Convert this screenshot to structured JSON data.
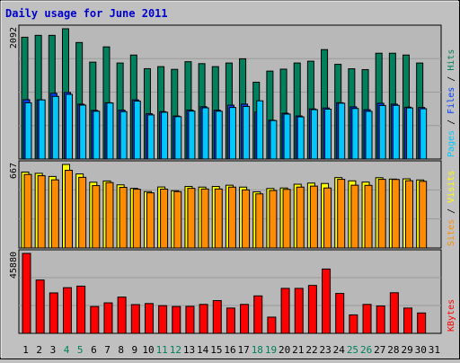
{
  "title": "Daily usage for June 2011",
  "colors": {
    "background": "#c0c0c0",
    "plot_bg": "#b8b8b8",
    "title": "#0000cc",
    "hits": "#00805c",
    "files": "#0040ff",
    "pages": "#00c8ff",
    "visits": "#ffff00",
    "sites": "#ff8c00",
    "kbytes": "#ff0000",
    "weekend_label": "#00805c"
  },
  "chart_data": [
    {
      "type": "bar",
      "panel": "hits-files-pages",
      "legend": [
        "Hits",
        "Files",
        "Pages"
      ],
      "y_max_label": "2092",
      "ylim": [
        0,
        2092
      ],
      "grid": true,
      "categories": [
        "1",
        "2",
        "3",
        "4",
        "5",
        "6",
        "7",
        "8",
        "9",
        "10",
        "11",
        "12",
        "13",
        "14",
        "15",
        "16",
        "17",
        "18",
        "19",
        "20",
        "21",
        "22",
        "23",
        "24",
        "25",
        "26",
        "27",
        "28",
        "29",
        "30",
        "31"
      ],
      "series": [
        {
          "name": "Hits",
          "values": [
            1956,
            1986,
            1986,
            2092,
            1871,
            1556,
            1801,
            1542,
            1670,
            1451,
            1484,
            1440,
            1563,
            1532,
            1484,
            1542,
            1610,
            1234,
            1412,
            1443,
            1542,
            1571,
            1757,
            1521,
            1449,
            1436,
            1699,
            1699,
            1670,
            1542,
            null
          ]
        },
        {
          "name": "Files",
          "values": [
            953,
            950,
            1056,
            1069,
            881,
            781,
            904,
            785,
            950,
            728,
            761,
            691,
            787,
            840,
            785,
            865,
            882,
            756,
            623,
            735,
            692,
            805,
            821,
            904,
            838,
            792,
            895,
            881,
            833,
            828,
            null
          ]
        },
        {
          "name": "Pages",
          "values": [
            903,
            950,
            1006,
            1039,
            866,
            767,
            900,
            761,
            931,
            708,
            751,
            681,
            770,
            822,
            768,
            828,
            845,
            935,
            618,
            722,
            677,
            793,
            801,
            896,
            812,
            766,
            860,
            862,
            821,
            808,
            null
          ]
        }
      ]
    },
    {
      "type": "bar",
      "panel": "visits-sites",
      "legend": [
        "Visits",
        "Sites"
      ],
      "y_max_label": "667",
      "ylim": [
        0,
        667
      ],
      "grid": true,
      "categories": [
        "1",
        "2",
        "3",
        "4",
        "5",
        "6",
        "7",
        "8",
        "9",
        "10",
        "11",
        "12",
        "13",
        "14",
        "15",
        "16",
        "17",
        "18",
        "19",
        "20",
        "21",
        "22",
        "23",
        "24",
        "25",
        "26",
        "27",
        "28",
        "29",
        "30",
        "31"
      ],
      "series": [
        {
          "name": "Visits",
          "values": [
            606,
            596,
            571,
            667,
            591,
            525,
            535,
            504,
            476,
            450,
            487,
            457,
            491,
            486,
            491,
            501,
            486,
            448,
            475,
            479,
            509,
            518,
            515,
            562,
            536,
            526,
            561,
            550,
            552,
            543,
            null
          ]
        },
        {
          "name": "Sites",
          "values": [
            587,
            577,
            544,
            620,
            564,
            498,
            522,
            484,
            469,
            440,
            470,
            450,
            476,
            471,
            471,
            486,
            464,
            432,
            459,
            468,
            486,
            494,
            479,
            548,
            501,
            500,
            548,
            547,
            537,
            532,
            null
          ]
        }
      ]
    },
    {
      "type": "bar",
      "panel": "kbytes",
      "legend": [
        "KBytes"
      ],
      "y_max_label": "45880",
      "ylim": [
        0,
        45880
      ],
      "grid": true,
      "categories": [
        "1",
        "2",
        "3",
        "4",
        "5",
        "6",
        "7",
        "8",
        "9",
        "10",
        "11",
        "12",
        "13",
        "14",
        "15",
        "16",
        "17",
        "18",
        "19",
        "20",
        "21",
        "22",
        "23",
        "24",
        "25",
        "26",
        "27",
        "28",
        "29",
        "30",
        "31"
      ],
      "series": [
        {
          "name": "KBytes",
          "values": [
            45880,
            30600,
            23200,
            26200,
            27100,
            15400,
            17500,
            20800,
            16500,
            17100,
            15900,
            15400,
            15500,
            16600,
            18800,
            14500,
            16600,
            21500,
            9300,
            25800,
            25800,
            27500,
            36900,
            22900,
            10600,
            16600,
            15700,
            23300,
            14500,
            11700,
            null
          ]
        }
      ]
    }
  ],
  "weekend_days": [
    4,
    5,
    11,
    12,
    18,
    19,
    25,
    26
  ]
}
